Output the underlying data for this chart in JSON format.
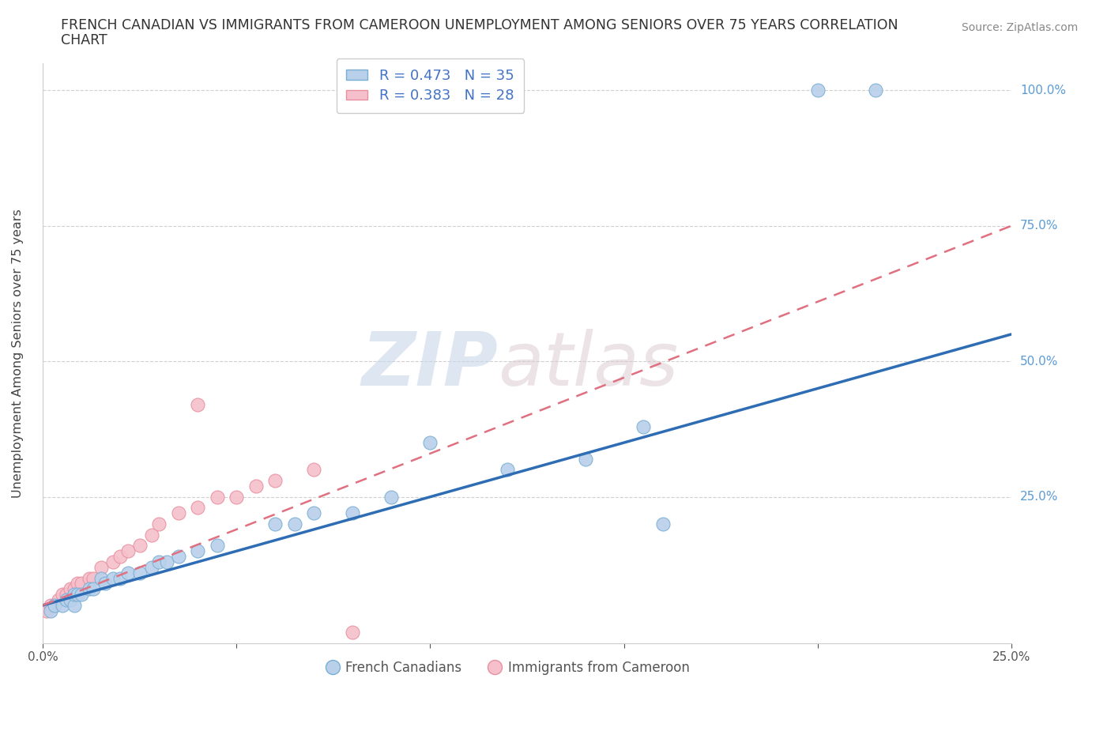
{
  "title_line1": "FRENCH CANADIAN VS IMMIGRANTS FROM CAMEROON UNEMPLOYMENT AMONG SENIORS OVER 75 YEARS CORRELATION",
  "title_line2": "CHART",
  "source_text": "Source: ZipAtlas.com",
  "ylabel": "Unemployment Among Seniors over 75 years",
  "xlim": [
    0.0,
    0.25
  ],
  "ylim": [
    -0.02,
    1.05
  ],
  "xticks": [
    0.0,
    0.05,
    0.1,
    0.15,
    0.2,
    0.25
  ],
  "yticks": [
    0.25,
    0.5,
    0.75,
    1.0
  ],
  "watermark_zip": "ZIP",
  "watermark_atlas": "atlas",
  "legend_r1": "R = 0.473",
  "legend_n1": "N = 35",
  "legend_r2": "R = 0.383",
  "legend_n2": "N = 28",
  "blue_color": "#b8d0ea",
  "blue_edge_color": "#7aafd4",
  "pink_color": "#f5c0cb",
  "pink_edge_color": "#e890a0",
  "blue_line_color": "#2e6db4",
  "pink_line_color": "#e07080",
  "grid_color": "#d0d0d0",
  "right_tick_color": "#5b9bd5",
  "french_canadians_x": [
    0.002,
    0.003,
    0.005,
    0.006,
    0.007,
    0.008,
    0.008,
    0.009,
    0.01,
    0.012,
    0.013,
    0.015,
    0.016,
    0.018,
    0.02,
    0.022,
    0.025,
    0.028,
    0.03,
    0.032,
    0.035,
    0.04,
    0.045,
    0.06,
    0.065,
    0.07,
    0.08,
    0.09,
    0.1,
    0.12,
    0.14,
    0.155,
    0.16,
    0.2,
    0.215
  ],
  "french_canadians_y": [
    0.04,
    0.05,
    0.05,
    0.06,
    0.06,
    0.05,
    0.07,
    0.07,
    0.07,
    0.08,
    0.08,
    0.1,
    0.09,
    0.1,
    0.1,
    0.11,
    0.11,
    0.12,
    0.13,
    0.13,
    0.14,
    0.15,
    0.16,
    0.2,
    0.2,
    0.22,
    0.22,
    0.25,
    0.35,
    0.3,
    0.32,
    0.38,
    0.2,
    1.0,
    1.0
  ],
  "cameroon_x": [
    0.001,
    0.002,
    0.003,
    0.004,
    0.005,
    0.006,
    0.007,
    0.008,
    0.009,
    0.01,
    0.012,
    0.013,
    0.015,
    0.018,
    0.02,
    0.022,
    0.025,
    0.028,
    0.03,
    0.035,
    0.04,
    0.04,
    0.045,
    0.05,
    0.055,
    0.06,
    0.07,
    0.08
  ],
  "cameroon_y": [
    0.04,
    0.05,
    0.05,
    0.06,
    0.07,
    0.07,
    0.08,
    0.08,
    0.09,
    0.09,
    0.1,
    0.1,
    0.12,
    0.13,
    0.14,
    0.15,
    0.16,
    0.18,
    0.2,
    0.22,
    0.23,
    0.42,
    0.25,
    0.25,
    0.27,
    0.28,
    0.3,
    0.0
  ],
  "blue_line_x0": 0.0,
  "blue_line_y0": 0.05,
  "blue_line_x1": 0.25,
  "blue_line_y1": 0.55,
  "pink_line_x0": 0.0,
  "pink_line_y0": 0.05,
  "pink_line_x1": 0.25,
  "pink_line_y1": 0.75
}
